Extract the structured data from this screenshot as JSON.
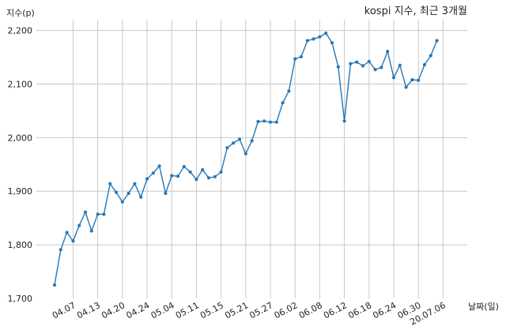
{
  "chart_data": {
    "type": "line",
    "title": "kospi 지수, 최근 3개월",
    "ylabel": "지수(p)",
    "xlabel": "날짜(일)",
    "ylim": [
      1700,
      2220
    ],
    "yticks": [
      1700,
      1800,
      1900,
      2000,
      2100,
      2200
    ],
    "ytick_labels": [
      "1,700",
      "1,800",
      "1,900",
      "2,000",
      "2,100",
      "2,200"
    ],
    "grid": true,
    "color": "#2878b5",
    "x_tick_labels": [
      "04.07",
      "04.13",
      "04.20",
      "04.24",
      "05.04",
      "05.11",
      "05.15",
      "05.21",
      "05.27",
      "06.02",
      "06.08",
      "06.12",
      "06.18",
      "06.24",
      "06.30",
      "20.07.06"
    ],
    "x_tick_index": [
      3,
      7,
      11,
      15,
      19,
      23,
      27,
      31,
      35,
      39,
      43,
      47,
      51,
      55,
      59,
      63
    ],
    "values": [
      1725,
      1791,
      1823,
      1807,
      1836,
      1861,
      1826,
      1857,
      1857,
      1914,
      1898,
      1880,
      1896,
      1914,
      1889,
      1923,
      1934,
      1947,
      1896,
      1929,
      1928,
      1946,
      1936,
      1922,
      1940,
      1925,
      1927,
      1936,
      1981,
      1990,
      1997,
      1970,
      1994,
      2030,
      2031,
      2029,
      2029,
      2065,
      2087,
      2147,
      2151,
      2181,
      2184,
      2188,
      2195,
      2177,
      2132,
      2031,
      2138,
      2141,
      2134,
      2142,
      2127,
      2131,
      2161,
      2112,
      2135,
      2094,
      2108,
      2107,
      2136,
      2153,
      2181
    ]
  }
}
